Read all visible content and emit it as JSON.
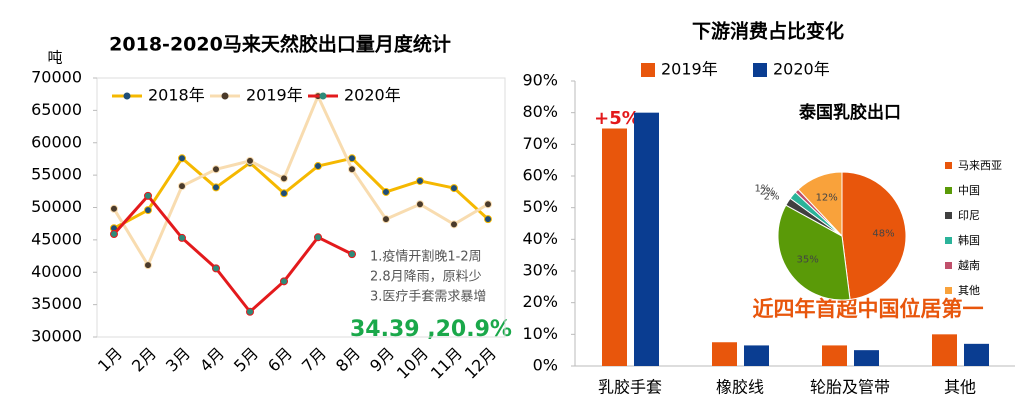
{
  "chart_data": [
    {
      "type": "line",
      "title": "2018-2020马来天然胶出口量月度统计",
      "y_label": "吨",
      "categories": [
        "1月",
        "2月",
        "3月",
        "4月",
        "5月",
        "6月",
        "7月",
        "8月",
        "9月",
        "10月",
        "11月",
        "12月"
      ],
      "series": [
        {
          "name": "2018年",
          "color": "#f5b800",
          "values": [
            46800,
            49600,
            57600,
            53100,
            56900,
            52200,
            56400,
            57600,
            52400,
            54100,
            53000,
            48200
          ]
        },
        {
          "name": "2019年",
          "color": "#f8dcb0",
          "values": [
            49800,
            41100,
            53300,
            55900,
            57200,
            54500,
            67200,
            55900,
            48200,
            50500,
            47400,
            50500
          ]
        },
        {
          "name": "2020年",
          "color": "#e31a1c",
          "values": [
            45900,
            51800,
            45300,
            40600,
            33900,
            38600,
            45400,
            42800,
            null,
            null,
            null,
            null
          ]
        }
      ],
      "ylim": [
        30000,
        70000
      ],
      "yticks": [
        30000,
        35000,
        40000,
        45000,
        50000,
        55000,
        60000,
        65000,
        70000
      ],
      "grid": false,
      "annotations": [
        "1.疫情开割晚1-2周",
        "2.8月降雨，原料少",
        "3.医疗手套需求暴增",
        "34.39 ,20.9%"
      ]
    },
    {
      "type": "bar",
      "title": "下游消费占比变化",
      "categories": [
        "乳胶手套",
        "橡胶线",
        "轮胎及管带",
        "其他"
      ],
      "series": [
        {
          "name": "2019年",
          "color": "#e8560c",
          "values": [
            75,
            7.5,
            6.5,
            10
          ]
        },
        {
          "name": "2020年",
          "color": "#0a3d91",
          "values": [
            80,
            6.5,
            5,
            7
          ]
        }
      ],
      "ylim": [
        0,
        90
      ],
      "yticks": [
        {
          "value": 0,
          "label": "0%"
        },
        {
          "value": 10,
          "label": "10%"
        },
        {
          "value": 20,
          "label": "20%"
        },
        {
          "value": 30,
          "label": "30%"
        },
        {
          "value": 40,
          "label": "40%"
        },
        {
          "value": 50,
          "label": "50%"
        },
        {
          "value": 60,
          "label": "60%"
        },
        {
          "value": 70,
          "label": "70%"
        },
        {
          "value": 80,
          "label": "80%"
        },
        {
          "value": 90,
          "label": "90%"
        }
      ],
      "grid": false,
      "annotations": [
        "+5%",
        "近四年首超中国位居第一"
      ]
    },
    {
      "type": "pie",
      "title": "泰国乳胶出口",
      "categories": [
        "马来西亚",
        "中国",
        "印尼",
        "韩国",
        "越南",
        "其他"
      ],
      "values": [
        48,
        35,
        2,
        2,
        1,
        12
      ],
      "value_labels": [
        "48%",
        "35%",
        "2%",
        "2%",
        "1%",
        "12%"
      ],
      "colors": [
        "#e8560c",
        "#5a9a08",
        "#404040",
        "#2bb39a",
        "#c0506b",
        "#f9a23b"
      ]
    }
  ]
}
